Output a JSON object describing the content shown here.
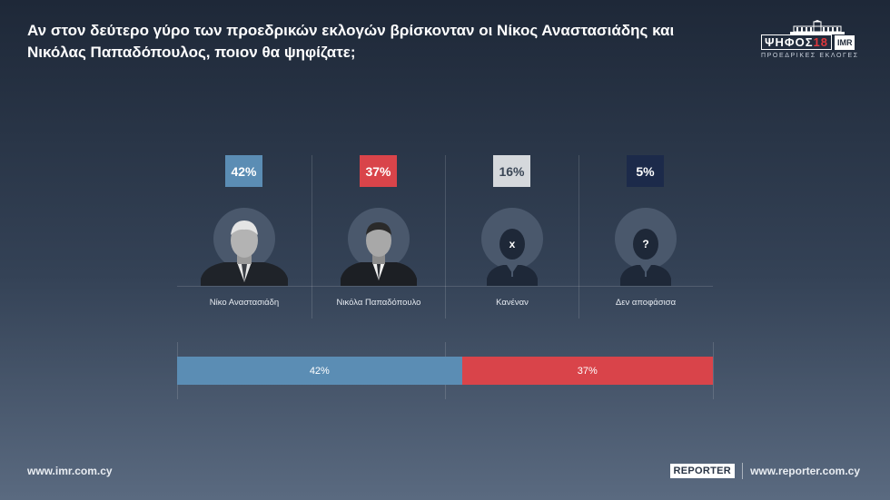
{
  "question": "Αν στον δεύτερο γύρο των προεδρικών εκλογών βρίσκονταν οι Νίκος Αναστασιάδης και Νικόλας Παπαδόπουλος, ποιον θα ψηφίζατε;",
  "logo": {
    "main": "ΨΗΦΟΣ",
    "year": "18",
    "badge": "IMR",
    "sub": "ΠΡΟΕΔΡΙΚΕΣ ΕΚΛΟΓΕΣ"
  },
  "candidates": [
    {
      "name": "Νίκο Αναστασιάδη",
      "percent": "42%",
      "color": "#5b8db4",
      "text_color": "#ffffff",
      "icon": "candidate-photo"
    },
    {
      "name": "Νικόλα Παπαδόπουλο",
      "percent": "37%",
      "color": "#d9444a",
      "text_color": "#ffffff",
      "icon": "candidate-photo"
    },
    {
      "name": "Κανέναν",
      "percent": "16%",
      "color": "#d5d8dc",
      "text_color": "#3a4656",
      "icon": "x-mark",
      "mark": "x"
    },
    {
      "name": "Δεν αποφάσισα",
      "percent": "5%",
      "color": "#1c2a4a",
      "text_color": "#ffffff",
      "icon": "question-mark",
      "mark": "?"
    }
  ],
  "bar": [
    {
      "label": "42%",
      "value": 42,
      "color": "#5b8db4"
    },
    {
      "label": "37%",
      "value": 37,
      "color": "#d9444a"
    }
  ],
  "footer": {
    "left_url": "www.imr.com.cy",
    "reporter": "REPORTER",
    "right_url": "www.reporter.com.cy"
  }
}
